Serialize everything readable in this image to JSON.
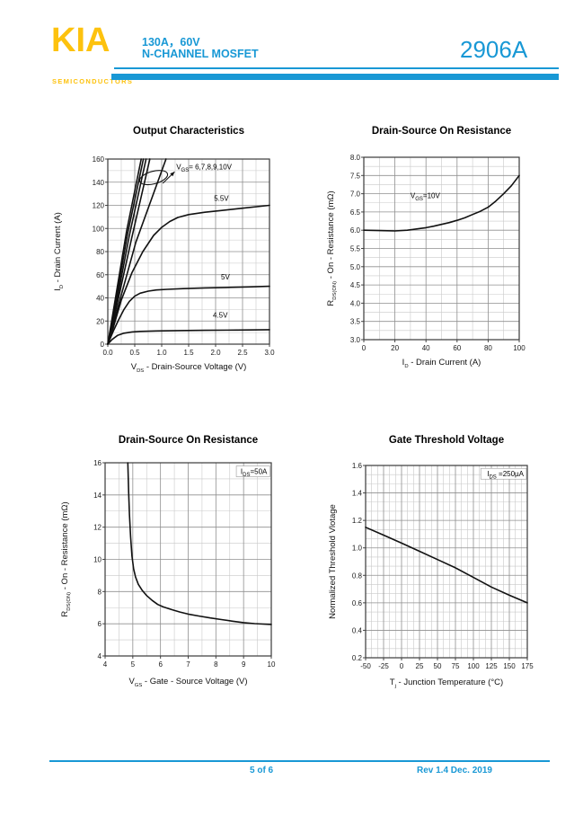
{
  "header": {
    "logo_text": "KIA",
    "logo_subtext": "SEMICONDUCTORS",
    "rating_line": "130A，60V",
    "type_line": "N-CHANNEL MOSFET",
    "part_number": "2906A",
    "brand_blue": "#1898d5",
    "brand_yellow": "#fdc20e"
  },
  "footer": {
    "page_indicator": "5 of 6",
    "revision": "Rev 1.4 Dec. 2019"
  },
  "chart_data": [
    {
      "id": "output-characteristics",
      "type": "line",
      "title": "Output Characteristics",
      "xlabel": {
        "pre": "V",
        "sub": "DS",
        "post": " - Drain-Source Voltage (V)"
      },
      "ylabel": {
        "pre": "I",
        "sub": "D",
        "post": " - Drain Current (A)"
      },
      "xlim": [
        0,
        3
      ],
      "ylim": [
        0,
        160
      ],
      "xticks": [
        "0.0",
        "0.5",
        "1.0",
        "1.5",
        "2.0",
        "2.5",
        "3.0"
      ],
      "yticks": [
        "0",
        "20",
        "40",
        "60",
        "80",
        "100",
        "120",
        "140",
        "160"
      ],
      "grid": true,
      "minor_grid": true,
      "legend": "none",
      "series": [
        {
          "name": "VGS=10V",
          "points": [
            [
              0,
              0
            ],
            [
              0.15,
              42
            ],
            [
              0.35,
              98
            ],
            [
              0.62,
              160
            ]
          ]
        },
        {
          "name": "VGS=9V",
          "points": [
            [
              0,
              0
            ],
            [
              0.16,
              40
            ],
            [
              0.37,
              96
            ],
            [
              0.66,
              160
            ]
          ]
        },
        {
          "name": "VGS=8V",
          "points": [
            [
              0,
              0
            ],
            [
              0.17,
              38
            ],
            [
              0.4,
              94
            ],
            [
              0.71,
              160
            ]
          ]
        },
        {
          "name": "VGS=7V",
          "points": [
            [
              0,
              0
            ],
            [
              0.18,
              36
            ],
            [
              0.44,
              91
            ],
            [
              0.78,
              160
            ]
          ]
        },
        {
          "name": "VGS=6V",
          "points": [
            [
              0,
              0
            ],
            [
              0.2,
              34
            ],
            [
              0.52,
              88
            ],
            [
              1.08,
              160
            ]
          ]
        },
        {
          "name": "VGS=5.5V",
          "points": [
            [
              0,
              0
            ],
            [
              0.1,
              14
            ],
            [
              0.25,
              38
            ],
            [
              0.45,
              62
            ],
            [
              0.65,
              80
            ],
            [
              0.85,
              94
            ],
            [
              1.0,
              101
            ],
            [
              1.15,
              106
            ],
            [
              1.3,
              109.5
            ],
            [
              1.5,
              112
            ],
            [
              1.8,
              114
            ],
            [
              2.1,
              115.5
            ],
            [
              2.5,
              117.5
            ],
            [
              3.0,
              120
            ]
          ]
        },
        {
          "name": "VGS=5V",
          "points": [
            [
              0,
              0
            ],
            [
              0.1,
              11
            ],
            [
              0.2,
              21
            ],
            [
              0.3,
              30
            ],
            [
              0.4,
              37
            ],
            [
              0.5,
              41.5
            ],
            [
              0.6,
              44
            ],
            [
              0.75,
              45.8
            ],
            [
              0.9,
              46.8
            ],
            [
              1.1,
              47.4
            ],
            [
              1.4,
              48
            ],
            [
              1.8,
              48.6
            ],
            [
              2.2,
              49
            ],
            [
              2.6,
              49.5
            ],
            [
              3.0,
              50
            ]
          ]
        },
        {
          "name": "VGS=4.5V",
          "points": [
            [
              0,
              0
            ],
            [
              0.08,
              4
            ],
            [
              0.18,
              7.5
            ],
            [
              0.3,
              9.5
            ],
            [
              0.45,
              10.6
            ],
            [
              0.6,
              11
            ],
            [
              0.9,
              11.4
            ],
            [
              1.3,
              11.7
            ],
            [
              1.8,
              12
            ],
            [
              2.4,
              12.2
            ],
            [
              3.0,
              12.5
            ]
          ]
        }
      ],
      "annotations": [
        {
          "pre": "V",
          "sub": "GS",
          "post": "= 6,7,8,9,10V",
          "x": 1.27,
          "y": 151,
          "anchor": "start",
          "boxed": false
        },
        {
          "pre": "5.5V",
          "sub": "",
          "post": "",
          "x": 1.97,
          "y": 124,
          "anchor": "start",
          "boxed": false
        },
        {
          "pre": "5V",
          "sub": "",
          "post": "",
          "x": 2.1,
          "y": 56,
          "anchor": "start",
          "boxed": false
        },
        {
          "pre": "4.5V",
          "sub": "",
          "post": "",
          "x": 1.95,
          "y": 23,
          "anchor": "start",
          "boxed": false
        }
      ],
      "ellipse": {
        "x": 0.85,
        "y": 144,
        "rx": 16,
        "ry": 7,
        "rot": -15
      },
      "arrow": {
        "x1": 1.02,
        "y1": 139,
        "x2": 1.24,
        "y2": 149
      }
    },
    {
      "id": "drain-source-on-resistance-vs-id",
      "type": "line",
      "title": "Drain-Source On Resistance",
      "xlabel": {
        "pre": "I",
        "sub": "D",
        "post": " - Drain Current (A)"
      },
      "ylabel": {
        "pre": "R",
        "sub": "DS(ON)",
        "post": " - On - Resistance (mΩ)"
      },
      "xlim": [
        0,
        100
      ],
      "ylim": [
        3,
        8
      ],
      "xticks": [
        "0",
        "20",
        "40",
        "60",
        "80",
        "100"
      ],
      "yticks": [
        "3.0",
        "3.5",
        "4.0",
        "4.5",
        "5.0",
        "5.5",
        "6.0",
        "6.5",
        "7.0",
        "7.5",
        "8.0"
      ],
      "grid": true,
      "minor_grid": true,
      "legend": "none",
      "series": [
        {
          "name": "VGS=10V",
          "points": [
            [
              0,
              6.0
            ],
            [
              10,
              5.99
            ],
            [
              20,
              5.98
            ],
            [
              28,
              6.0
            ],
            [
              35,
              6.04
            ],
            [
              40,
              6.07
            ],
            [
              45,
              6.11
            ],
            [
              50,
              6.16
            ],
            [
              55,
              6.21
            ],
            [
              60,
              6.27
            ],
            [
              65,
              6.34
            ],
            [
              70,
              6.43
            ],
            [
              75,
              6.52
            ],
            [
              80,
              6.63
            ],
            [
              85,
              6.8
            ],
            [
              90,
              7.0
            ],
            [
              95,
              7.22
            ],
            [
              100,
              7.5
            ]
          ]
        }
      ],
      "annotations": [
        {
          "pre": "V",
          "sub": "GS",
          "post": "=10V",
          "x": 30,
          "y": 6.88,
          "anchor": "start",
          "boxed": false
        }
      ]
    },
    {
      "id": "drain-source-on-resistance-vs-vgs",
      "type": "line",
      "title": "Drain-Source On Resistance",
      "xlabel": {
        "pre": "V",
        "sub": "GS",
        "post": " - Gate - Source Voltage (V)"
      },
      "ylabel": {
        "pre": "R",
        "sub": "DS(ON)",
        "post": " - On - Resistance (mΩ)"
      },
      "xlim": [
        4,
        10
      ],
      "ylim": [
        4,
        16
      ],
      "xticks": [
        "4",
        "5",
        "6",
        "7",
        "8",
        "9",
        "10"
      ],
      "yticks": [
        "4",
        "6",
        "8",
        "10",
        "12",
        "14",
        "16"
      ],
      "grid": true,
      "minor_grid": true,
      "legend": "none",
      "series": [
        {
          "name": "IDS=50A",
          "points": [
            [
              4.82,
              16
            ],
            [
              4.85,
              14.2
            ],
            [
              4.88,
              12.8
            ],
            [
              4.92,
              11.4
            ],
            [
              4.97,
              10.2
            ],
            [
              5.03,
              9.4
            ],
            [
              5.1,
              8.9
            ],
            [
              5.2,
              8.45
            ],
            [
              5.35,
              8.05
            ],
            [
              5.5,
              7.75
            ],
            [
              5.7,
              7.45
            ],
            [
              5.9,
              7.2
            ],
            [
              6.1,
              7.05
            ],
            [
              6.4,
              6.88
            ],
            [
              6.7,
              6.73
            ],
            [
              7.0,
              6.6
            ],
            [
              7.4,
              6.48
            ],
            [
              7.8,
              6.36
            ],
            [
              8.2,
              6.26
            ],
            [
              8.6,
              6.16
            ],
            [
              9.0,
              6.07
            ],
            [
              9.4,
              6.01
            ],
            [
              9.7,
              5.98
            ],
            [
              10.0,
              5.96
            ]
          ]
        }
      ],
      "annotations": [
        {
          "pre": "I",
          "sub": "DS",
          "post": "=50A",
          "x": 9.85,
          "y": 15.3,
          "anchor": "end",
          "boxed": true
        }
      ]
    },
    {
      "id": "gate-threshold-voltage",
      "type": "line",
      "title": "Gate Threshold Voltage",
      "xlabel": {
        "pre": "T",
        "sub": "j",
        "post": " - Junction Temperature (°C)"
      },
      "ylabel": {
        "pre": "Normalized Threshold Vlotage",
        "sub": "",
        "post": ""
      },
      "xlim": [
        -50,
        175
      ],
      "ylim": [
        0.2,
        1.6
      ],
      "xticks": [
        "-50",
        "-25",
        "0",
        "25",
        "50",
        "75",
        "100",
        "125",
        "150",
        "175"
      ],
      "yticks": [
        "0.2",
        "0.4",
        "0.6",
        "0.8",
        "1.0",
        "1.2",
        "1.4",
        "1.6"
      ],
      "grid": true,
      "minor_grid": true,
      "legend": "none",
      "series": [
        {
          "name": "IDS=250µA",
          "points": [
            [
              -50,
              1.15
            ],
            [
              -25,
              1.093
            ],
            [
              0,
              1.035
            ],
            [
              25,
              0.975
            ],
            [
              50,
              0.915
            ],
            [
              75,
              0.855
            ],
            [
              100,
              0.785
            ],
            [
              125,
              0.715
            ],
            [
              150,
              0.655
            ],
            [
              175,
              0.6
            ]
          ]
        }
      ],
      "annotations": [
        {
          "pre": "I",
          "sub": "DS",
          "post": " =250µA",
          "x": 170,
          "y": 1.52,
          "anchor": "end",
          "boxed": true
        }
      ]
    }
  ]
}
